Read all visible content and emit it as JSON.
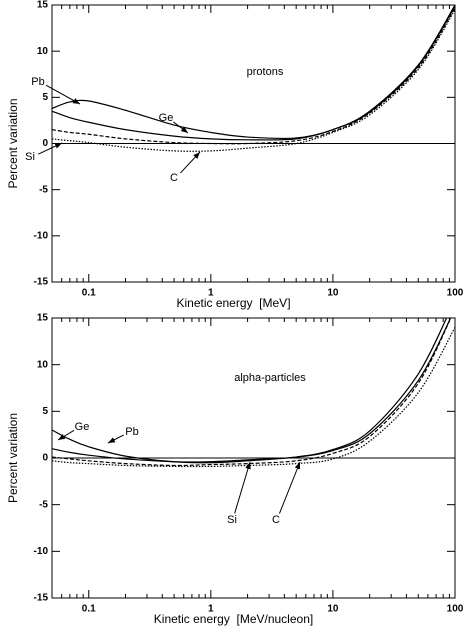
{
  "chart_data": [
    {
      "type": "line",
      "title": "protons",
      "x_label": "Kinetic energy  [MeV]",
      "y_label": "Percent variation",
      "xscale": "log",
      "xlim": [
        0.05,
        100
      ],
      "xticks": [
        0.1,
        1,
        10,
        100
      ],
      "ylim": [
        -15,
        15
      ],
      "yticks": [
        15,
        10,
        5,
        0,
        -5,
        -10,
        -15
      ],
      "x": [
        0.05,
        0.07,
        0.1,
        0.2,
        0.5,
        1,
        2,
        5,
        10,
        20,
        50,
        100
      ],
      "series": [
        {
          "name": "Pb",
          "color": "#000000",
          "line_style": "solid",
          "values": [
            3.8,
            4.5,
            4.6,
            3.6,
            2.0,
            1.2,
            0.7,
            0.6,
            1.5,
            3.5,
            8.5,
            15
          ]
        },
        {
          "name": "Ge",
          "color": "#000000",
          "line_style": "solid",
          "values": [
            3.5,
            2.8,
            2.3,
            1.5,
            0.8,
            0.5,
            0.4,
            0.5,
            1.5,
            3.4,
            8.4,
            14.9
          ]
        },
        {
          "name": "Si",
          "color": "#000000",
          "line_style": "dashed",
          "values": [
            1.5,
            1.2,
            1.0,
            0.5,
            0.1,
            0,
            0,
            0.3,
            1.3,
            3.3,
            8.2,
            14.7
          ]
        },
        {
          "name": "C",
          "color": "#000000",
          "line_style": "dotted",
          "values": [
            0.5,
            0.3,
            0.1,
            -0.4,
            -0.8,
            -0.8,
            -0.5,
            0,
            1.2,
            3.1,
            8.0,
            14.5
          ]
        }
      ]
    },
    {
      "type": "line",
      "title": "alpha-particles",
      "x_label": "Kinetic energy  [MeV/nucleon]",
      "y_label": "Percent variation",
      "xscale": "log",
      "xlim": [
        0.05,
        100
      ],
      "xticks": [
        0.1,
        1,
        10,
        100
      ],
      "ylim": [
        -15,
        15
      ],
      "yticks": [
        15,
        10,
        5,
        0,
        -5,
        -10,
        -15
      ],
      "x": [
        0.05,
        0.07,
        0.1,
        0.2,
        0.5,
        1,
        2,
        5,
        10,
        20,
        50,
        100
      ],
      "series": [
        {
          "name": "Pb",
          "color": "#000000",
          "line_style": "solid",
          "values": [
            1.0,
            0.6,
            0.3,
            -0.1,
            -0.4,
            -0.4,
            -0.2,
            0.1,
            0.8,
            2.6,
            8.3,
            16
          ]
        },
        {
          "name": "Ge",
          "color": "#000000",
          "line_style": "solid",
          "values": [
            3.0,
            2.0,
            1.2,
            0.2,
            -0.4,
            -0.5,
            -0.3,
            0.1,
            0.9,
            2.9,
            9.0,
            17
          ]
        },
        {
          "name": "Si",
          "color": "#000000",
          "line_style": "dashed",
          "values": [
            0.1,
            -0.1,
            -0.3,
            -0.6,
            -0.8,
            -0.7,
            -0.6,
            -0.3,
            0.5,
            2.3,
            8.0,
            16
          ]
        },
        {
          "name": "C",
          "color": "#000000",
          "line_style": "dotted",
          "values": [
            -0.3,
            -0.5,
            -0.6,
            -0.8,
            -0.9,
            -0.9,
            -0.8,
            -0.6,
            -0.1,
            1.8,
            7.0,
            14
          ]
        }
      ]
    }
  ]
}
